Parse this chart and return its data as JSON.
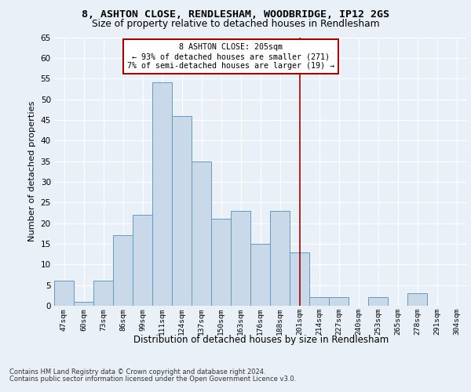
{
  "title1": "8, ASHTON CLOSE, RENDLESHAM, WOODBRIDGE, IP12 2GS",
  "title2": "Size of property relative to detached houses in Rendlesham",
  "xlabel": "Distribution of detached houses by size in Rendlesham",
  "ylabel": "Number of detached properties",
  "categories": [
    "47sqm",
    "60sqm",
    "73sqm",
    "86sqm",
    "99sqm",
    "111sqm",
    "124sqm",
    "137sqm",
    "150sqm",
    "163sqm",
    "176sqm",
    "188sqm",
    "201sqm",
    "214sqm",
    "227sqm",
    "240sqm",
    "253sqm",
    "265sqm",
    "278sqm",
    "291sqm",
    "304sqm"
  ],
  "values": [
    6,
    1,
    6,
    17,
    22,
    54,
    46,
    35,
    21,
    23,
    15,
    23,
    13,
    2,
    2,
    0,
    2,
    0,
    3,
    0,
    0
  ],
  "bar_color": "#c9d9ea",
  "bar_edge_color": "#6699bb",
  "subject_line_color": "#990000",
  "annotation_line1": "8 ASHTON CLOSE: 205sqm",
  "annotation_line2": "← 93% of detached houses are smaller (271)",
  "annotation_line3": "7% of semi-detached houses are larger (19) →",
  "annotation_box_color": "#990000",
  "ylim": [
    0,
    65
  ],
  "yticks": [
    0,
    5,
    10,
    15,
    20,
    25,
    30,
    35,
    40,
    45,
    50,
    55,
    60,
    65
  ],
  "footer1": "Contains HM Land Registry data © Crown copyright and database right 2024.",
  "footer2": "Contains public sector information licensed under the Open Government Licence v3.0.",
  "bg_color": "#eaf0f8",
  "plot_bg_color": "#eaf0f8",
  "subject_bar_idx": 12
}
